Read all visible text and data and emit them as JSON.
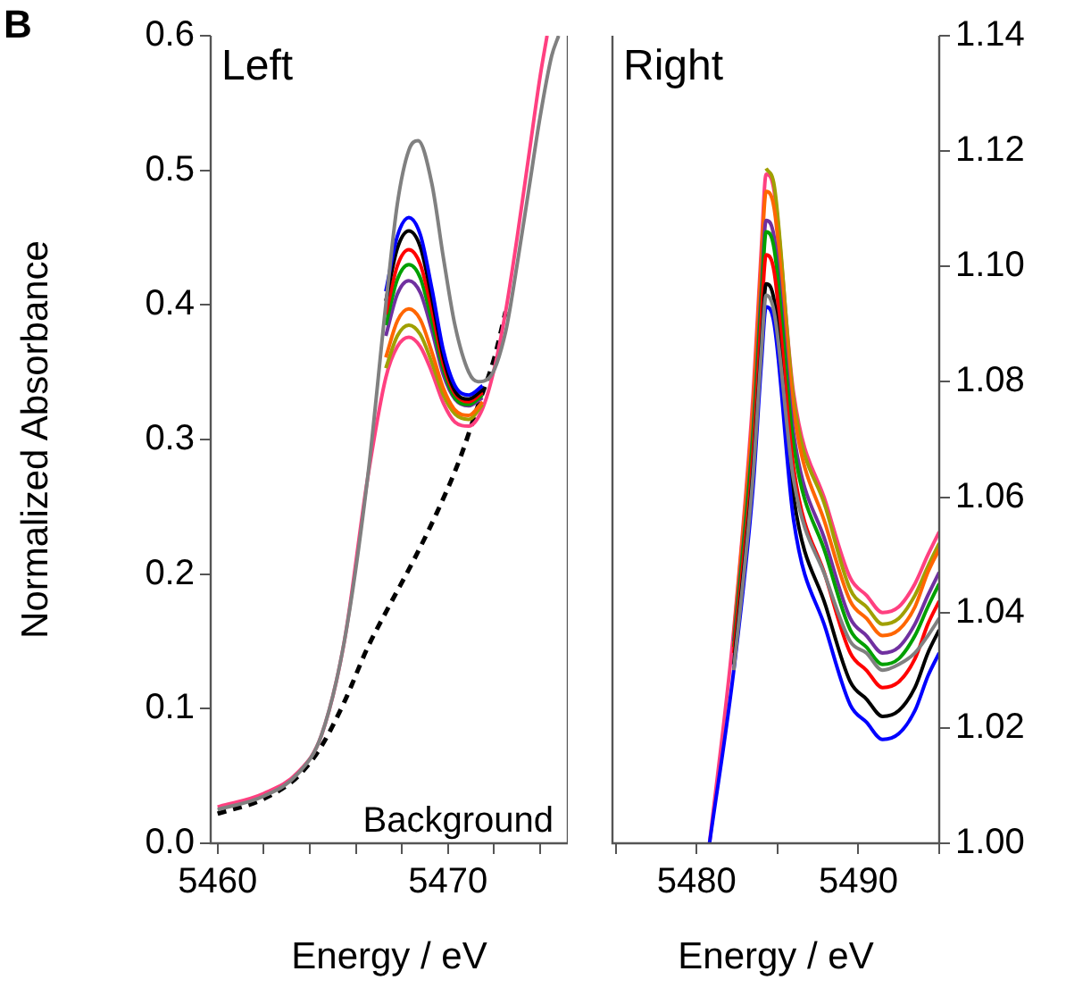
{
  "chart_data": [
    {
      "type": "line",
      "title": "Left",
      "xlabel": "Energy / eV",
      "ylabel": "Normalized Absorbance",
      "annotations": [
        "B",
        "Background"
      ],
      "x": [
        5460,
        5462,
        5463.5,
        5464.5,
        5465.5,
        5466.5,
        5467.3,
        5467.8,
        5468.3,
        5468.8,
        5469.3,
        5469.8,
        5470.3,
        5470.9,
        5471.5,
        5472,
        5472.5,
        5473,
        5473.5,
        5474,
        5474.3
      ],
      "series": [
        {
          "color": "#808080",
          "x": [
            5460,
            5462,
            5463.5,
            5464.5,
            5465.5,
            5466.5,
            5467.3,
            5467.8,
            5468.3,
            5468.7,
            5469.3,
            5469.8,
            5470.3,
            5470.9,
            5471.3,
            5471.8,
            5472.5,
            5473,
            5473.5,
            5474,
            5474.5,
            5474.8
          ],
          "values": [
            0.025,
            0.035,
            0.052,
            0.08,
            0.15,
            0.27,
            0.4,
            0.475,
            0.515,
            0.522,
            0.49,
            0.435,
            0.385,
            0.35,
            0.343,
            0.346,
            0.38,
            0.43,
            0.485,
            0.54,
            0.585,
            0.6
          ]
        },
        {
          "color": "#0000ff",
          "values": [
            null,
            null,
            null,
            null,
            null,
            null,
            0.41,
            0.451,
            0.465,
            0.452,
            0.412,
            0.366,
            0.34,
            0.333,
            0.34,
            null,
            null,
            null,
            null,
            null,
            null
          ]
        },
        {
          "color": "#000000",
          "values": [
            null,
            null,
            null,
            null,
            null,
            null,
            0.403,
            0.442,
            0.455,
            0.443,
            0.405,
            0.361,
            0.336,
            0.33,
            0.337,
            null,
            null,
            null,
            null,
            null,
            null
          ]
        },
        {
          "color": "#ff0000",
          "values": [
            null,
            null,
            null,
            null,
            null,
            null,
            0.393,
            0.429,
            0.441,
            0.43,
            0.396,
            0.356,
            0.334,
            0.328,
            0.335,
            null,
            null,
            null,
            null,
            null,
            null
          ]
        },
        {
          "color": "#00a000",
          "values": [
            null,
            null,
            null,
            null,
            null,
            null,
            0.385,
            0.419,
            0.43,
            0.42,
            0.388,
            0.352,
            0.331,
            0.326,
            0.333,
            null,
            null,
            null,
            null,
            null,
            null
          ]
        },
        {
          "color": "#7030a0",
          "values": [
            null,
            null,
            null,
            null,
            null,
            null,
            0.377,
            0.408,
            0.418,
            0.409,
            0.381,
            0.348,
            0.33,
            0.325,
            0.331,
            null,
            null,
            null,
            null,
            null,
            null
          ]
        },
        {
          "color": "#ff6600",
          "values": [
            null,
            null,
            null,
            null,
            null,
            null,
            0.361,
            0.388,
            0.397,
            0.389,
            0.365,
            0.338,
            0.322,
            0.318,
            0.328,
            null,
            null,
            null,
            null,
            null,
            null
          ]
        },
        {
          "color": "#a0a000",
          "values": [
            null,
            null,
            null,
            null,
            null,
            null,
            0.353,
            0.377,
            0.385,
            0.378,
            0.357,
            0.333,
            0.319,
            0.315,
            0.326,
            null,
            null,
            null,
            null,
            null,
            null
          ]
        },
        {
          "color": "#ff4080",
          "values": [
            0.027,
            0.037,
            0.053,
            0.08,
            0.15,
            0.27,
            0.346,
            0.369,
            0.376,
            0.369,
            0.35,
            0.327,
            0.313,
            0.31,
            0.323,
            0.352,
            0.395,
            0.45,
            0.51,
            0.57,
            0.6
          ]
        },
        {
          "color": "#000000",
          "line_style": "dashed",
          "x": [
            5460,
            5462,
            5463.5,
            5464.5,
            5465.5,
            5466.5,
            5467.5,
            5468.5,
            5469.5,
            5470.5,
            5471.3,
            5472,
            5472.5
          ],
          "values": [
            0.022,
            0.033,
            0.05,
            0.072,
            0.105,
            0.145,
            0.178,
            0.21,
            0.245,
            0.285,
            0.325,
            0.36,
            0.395
          ]
        }
      ],
      "xlim": [
        5459.7,
        5475.2
      ],
      "ylim": [
        0,
        0.6
      ],
      "xticks": [
        5460,
        {
          "value": 5462,
          "label": null
        },
        {
          "value": 5464,
          "label": null
        },
        {
          "value": 5466,
          "label": null
        },
        {
          "value": 5468,
          "label": null
        },
        5470,
        {
          "value": 5472,
          "label": null
        },
        {
          "value": 5474,
          "label": null
        }
      ],
      "yticks": [
        {
          "value": 0,
          "label": "0.0"
        },
        0.1,
        0.2,
        0.3,
        0.4,
        0.5,
        0.6
      ]
    },
    {
      "type": "line",
      "title": "Right",
      "xlabel": "Energy / eV",
      "x": [
        5480.8,
        5482.3,
        5483.5,
        5484,
        5484.3,
        5484.8,
        5486,
        5488,
        5489.5,
        5490.5,
        5491.5,
        5492.5,
        5493.5,
        5494.3,
        5495
      ],
      "series": [
        {
          "color": "#808080",
          "values": [
            null,
            1.03,
            1.064,
            1.085,
            1.095,
            1.092,
            1.063,
            1.046,
            1.035,
            1.033,
            1.03,
            1.031,
            1.033,
            1.036,
            1.039
          ]
        },
        {
          "color": "#0000ff",
          "values": [
            1.0,
            1.03,
            1.062,
            1.083,
            1.093,
            1.09,
            1.056,
            1.037,
            1.024,
            1.021,
            1.018,
            1.019,
            1.023,
            1.029,
            1.033
          ]
        },
        {
          "color": "#000000",
          "values": [
            null,
            1.031,
            1.065,
            1.086,
            1.097,
            1.094,
            1.06,
            1.041,
            1.028,
            1.025,
            1.022,
            1.023,
            1.027,
            1.033,
            1.037
          ]
        },
        {
          "color": "#ff0000",
          "values": [
            null,
            1.033,
            1.068,
            1.091,
            1.102,
            1.099,
            1.065,
            1.046,
            1.033,
            1.03,
            1.027,
            1.028,
            1.032,
            1.038,
            1.042
          ]
        },
        {
          "color": "#00a000",
          "values": [
            null,
            1.034,
            1.071,
            1.094,
            1.106,
            1.103,
            1.069,
            1.05,
            1.037,
            1.034,
            1.031,
            1.032,
            1.036,
            1.041,
            1.045
          ]
        },
        {
          "color": "#7030a0",
          "values": [
            null,
            1.035,
            1.072,
            1.096,
            1.108,
            1.105,
            1.071,
            1.052,
            1.039,
            1.036,
            1.033,
            1.034,
            1.038,
            1.043,
            1.047
          ]
        },
        {
          "color": "#ff6600",
          "values": [
            null,
            1.036,
            1.076,
            1.101,
            1.113,
            1.11,
            1.075,
            1.055,
            1.042,
            1.039,
            1.036,
            1.037,
            1.041,
            1.047,
            1.051
          ]
        },
        {
          "color": "#a0a000",
          "values": [
            null,
            null,
            null,
            null,
            1.117,
            1.114,
            1.077,
            1.058,
            1.044,
            1.041,
            1.038,
            1.039,
            1.043,
            1.048,
            1.052
          ]
        },
        {
          "color": "#ff4080",
          "values": [
            1.0,
            1.037,
            1.078,
            1.103,
            1.116,
            1.113,
            1.078,
            1.059,
            1.046,
            1.043,
            1.04,
            1.041,
            1.045,
            1.05,
            1.054
          ]
        }
      ],
      "xlim": [
        5474.8,
        5495
      ],
      "ylim": [
        1.0,
        1.14
      ],
      "xticks": [
        {
          "value": 5475,
          "label": null
        },
        5480,
        {
          "value": 5485,
          "label": null
        },
        5490,
        {
          "value": 5495,
          "label": null
        }
      ],
      "yticks": [
        {
          "value": 1.0,
          "label": "1.00"
        },
        {
          "value": 1.02,
          "label": "1.02"
        },
        {
          "value": 1.04,
          "label": "1.04"
        },
        {
          "value": 1.06,
          "label": "1.06"
        },
        {
          "value": 1.08,
          "label": "1.08"
        },
        {
          "value": 1.1,
          "label": "1.10"
        },
        {
          "value": 1.12,
          "label": "1.12"
        },
        {
          "value": 1.14,
          "label": "1.14"
        }
      ]
    }
  ]
}
